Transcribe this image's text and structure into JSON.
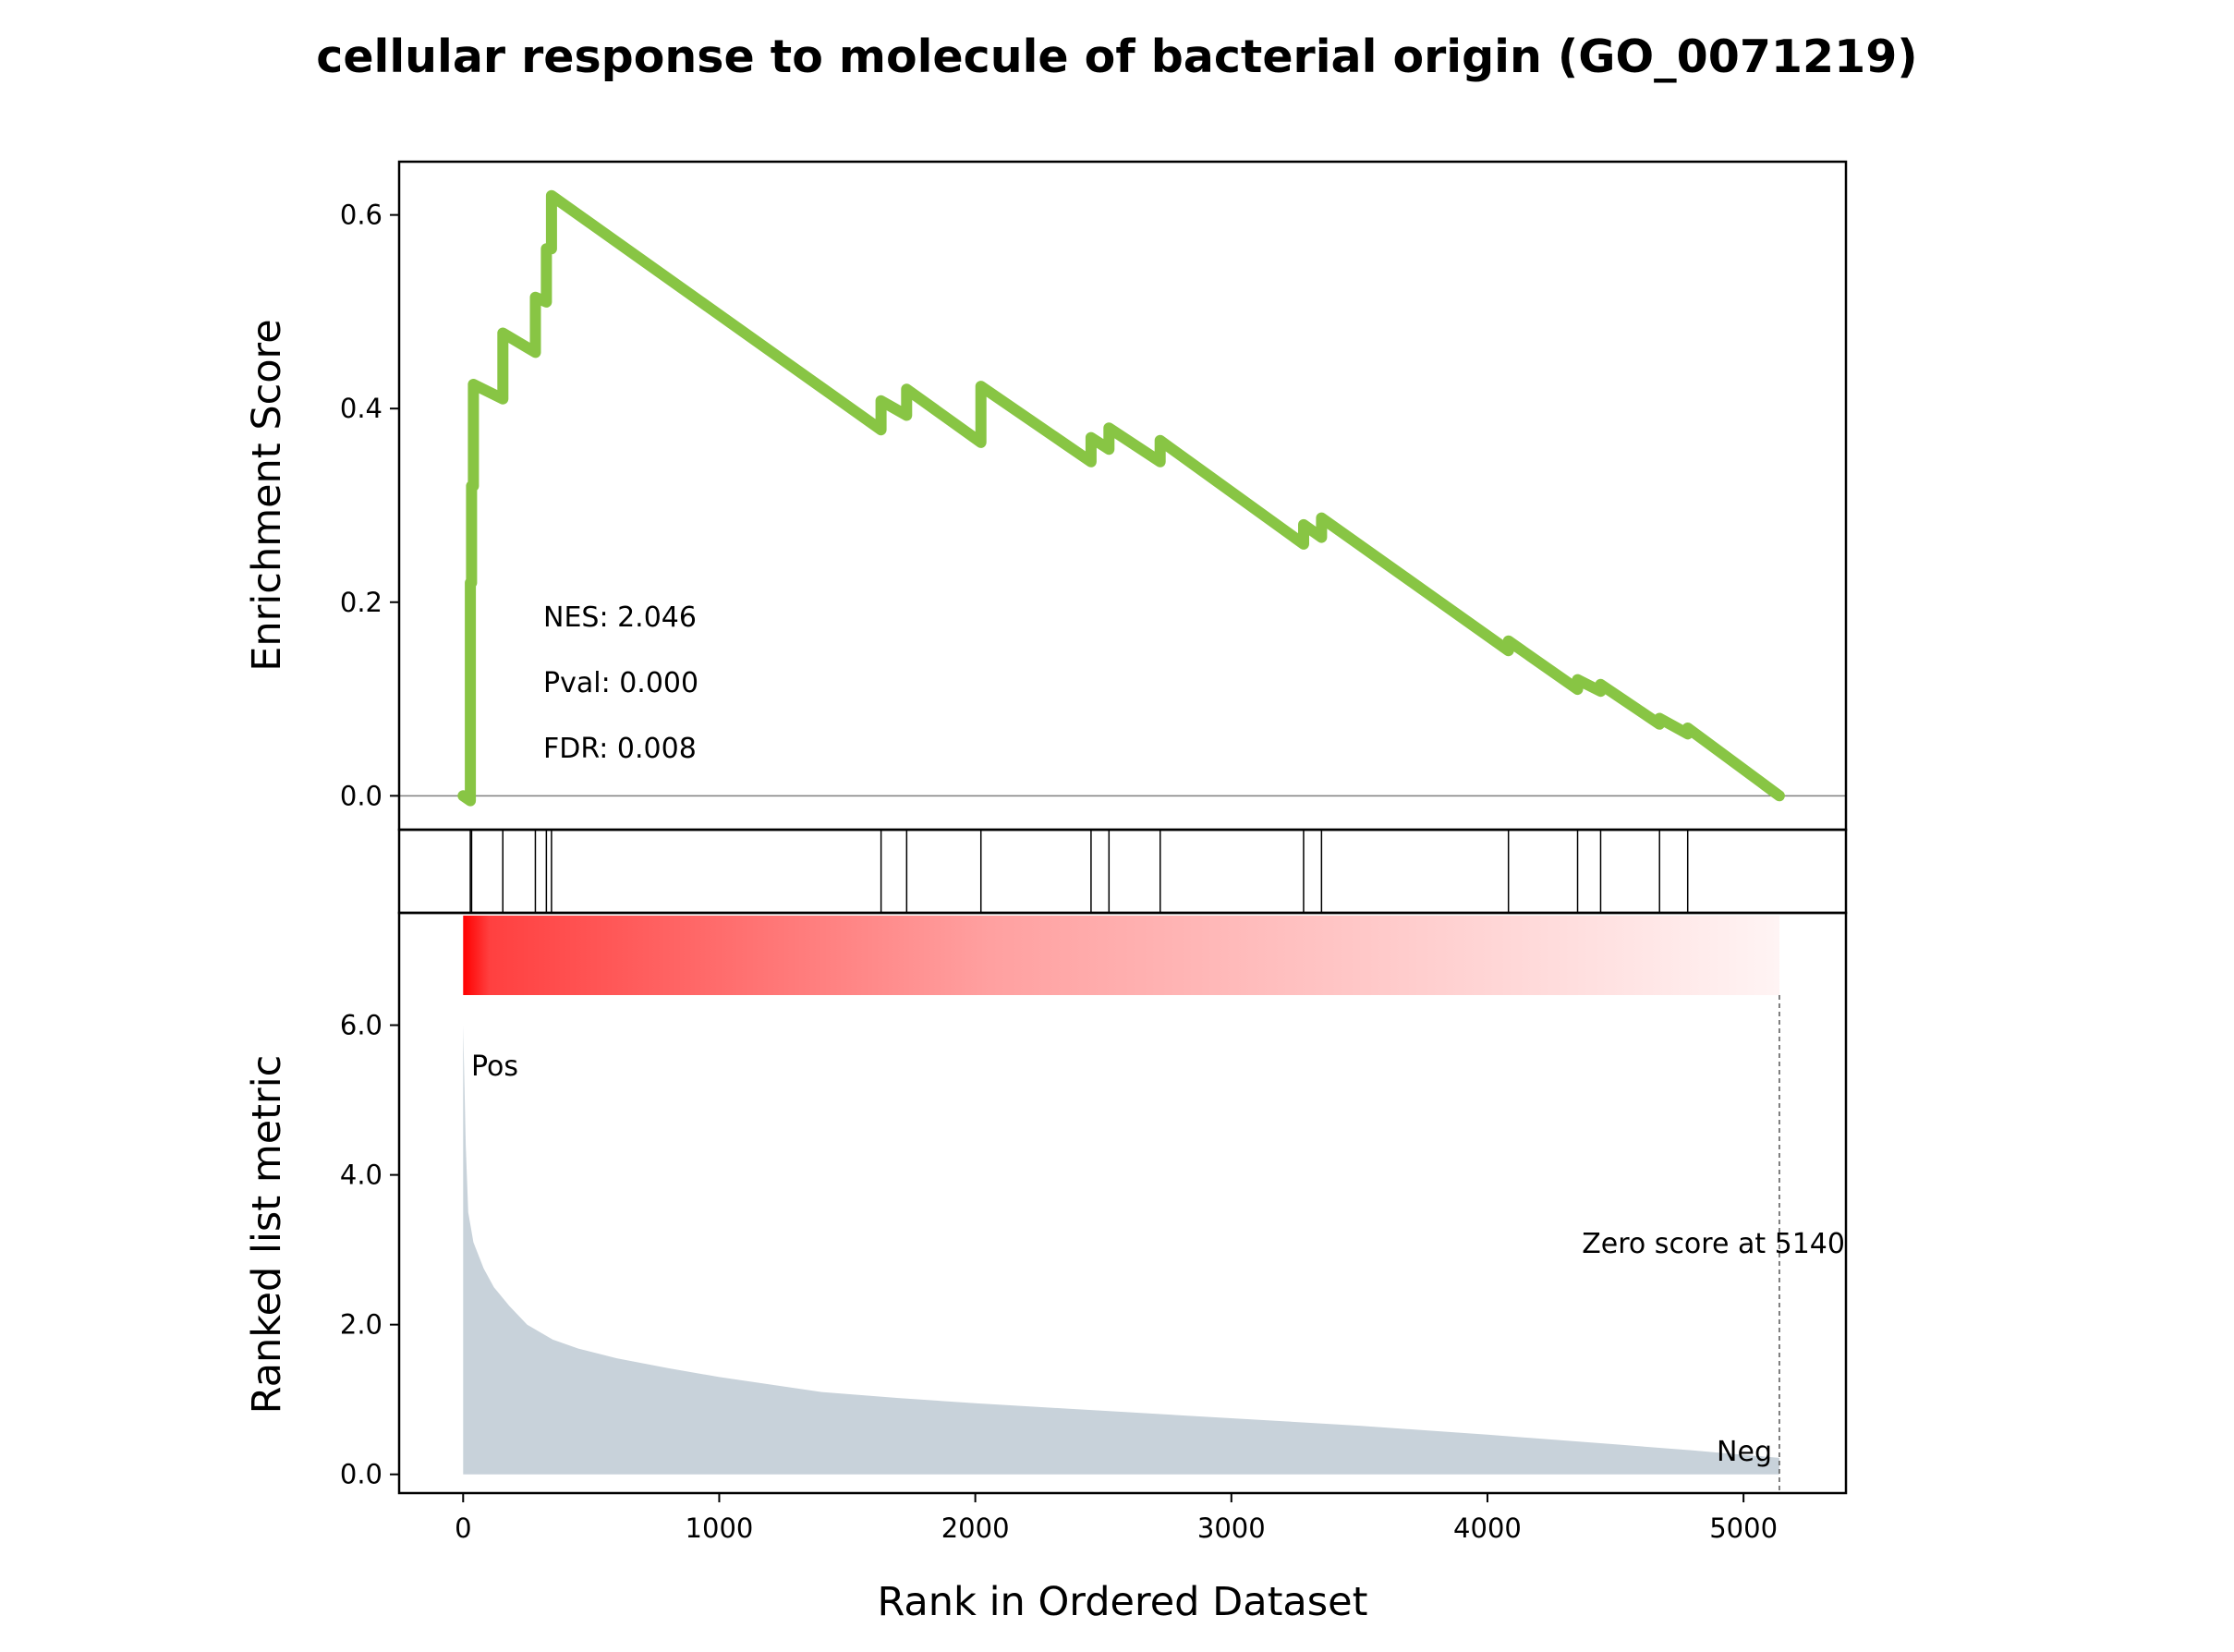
{
  "chart_data": {
    "type": "line",
    "title": "cellular response to molecule of bacterial origin (GO_0071219)",
    "xlabel": "Rank in Ordered Dataset",
    "xlim": [
      -250,
      5400
    ],
    "xticks": [
      0,
      1000,
      2000,
      3000,
      4000,
      5000
    ],
    "enrichment": {
      "ylabel": "Enrichment Score",
      "ylim": [
        -0.035,
        0.655
      ],
      "yticks": [
        "0.0",
        "0.2",
        "0.4",
        "0.6"
      ],
      "ytick_values": [
        0.0,
        0.2,
        0.4,
        0.6
      ],
      "line_color": "#88C544",
      "points": [
        [
          0,
          0.0
        ],
        [
          28,
          -0.005
        ],
        [
          28,
          0.22
        ],
        [
          33,
          0.22
        ],
        [
          33,
          0.32
        ],
        [
          40,
          0.32
        ],
        [
          40,
          0.425
        ],
        [
          155,
          0.41
        ],
        [
          155,
          0.478
        ],
        [
          282,
          0.458
        ],
        [
          282,
          0.515
        ],
        [
          325,
          0.51
        ],
        [
          325,
          0.565
        ],
        [
          345,
          0.565
        ],
        [
          345,
          0.62
        ],
        [
          1632,
          0.378
        ],
        [
          1632,
          0.408
        ],
        [
          1732,
          0.393
        ],
        [
          1732,
          0.42
        ],
        [
          2022,
          0.365
        ],
        [
          2022,
          0.423
        ],
        [
          2452,
          0.345
        ],
        [
          2452,
          0.37
        ],
        [
          2522,
          0.358
        ],
        [
          2522,
          0.38
        ],
        [
          2722,
          0.345
        ],
        [
          2722,
          0.367
        ],
        [
          3282,
          0.26
        ],
        [
          3282,
          0.28
        ],
        [
          3352,
          0.267
        ],
        [
          3352,
          0.287
        ],
        [
          4082,
          0.15
        ],
        [
          4082,
          0.16
        ],
        [
          4352,
          0.11
        ],
        [
          4352,
          0.12
        ],
        [
          4442,
          0.108
        ],
        [
          4442,
          0.115
        ],
        [
          4672,
          0.074
        ],
        [
          4672,
          0.08
        ],
        [
          4782,
          0.064
        ],
        [
          4782,
          0.07
        ],
        [
          5140,
          0.0
        ]
      ],
      "stats": [
        "NES: 2.046",
        "Pval: 0.000",
        "FDR: 0.008"
      ]
    },
    "hits": [
      28,
      33,
      155,
      282,
      325,
      345,
      1632,
      1732,
      2022,
      2452,
      2522,
      2722,
      3282,
      3352,
      4082,
      4352,
      4442,
      4672,
      4782
    ],
    "ranked_metric": {
      "ylabel": "Ranked list metric",
      "ylim": [
        -0.25,
        7.5
      ],
      "yticks": [
        "0.0",
        "2.0",
        "4.0",
        "6.0"
      ],
      "ytick_values": [
        0.0,
        2.0,
        4.0,
        6.0
      ],
      "fill_color": "#C8D2DA",
      "curve": [
        [
          0,
          6.0
        ],
        [
          5,
          5.2
        ],
        [
          10,
          4.4
        ],
        [
          20,
          3.5
        ],
        [
          40,
          3.1
        ],
        [
          80,
          2.75
        ],
        [
          120,
          2.5
        ],
        [
          180,
          2.25
        ],
        [
          250,
          2.0
        ],
        [
          350,
          1.8
        ],
        [
          450,
          1.68
        ],
        [
          600,
          1.55
        ],
        [
          800,
          1.42
        ],
        [
          1000,
          1.3
        ],
        [
          1200,
          1.2
        ],
        [
          1400,
          1.1
        ],
        [
          1700,
          1.02
        ],
        [
          2000,
          0.95
        ],
        [
          2500,
          0.85
        ],
        [
          3000,
          0.75
        ],
        [
          3500,
          0.65
        ],
        [
          4000,
          0.53
        ],
        [
          4500,
          0.4
        ],
        [
          4800,
          0.32
        ],
        [
          5140,
          0.22
        ]
      ],
      "pos_label": "Pos",
      "neg_label": "Neg",
      "pos_color": "#EE0000",
      "neg_color": "#0000DD",
      "zero_score_text": "Zero score at 5140",
      "zero_score_rank": 5140
    },
    "gradient": {
      "start_color": "#FF0000",
      "end_color": "#FFFFFF",
      "x_range": [
        0,
        5140
      ]
    },
    "grid": false,
    "legend": "none"
  }
}
